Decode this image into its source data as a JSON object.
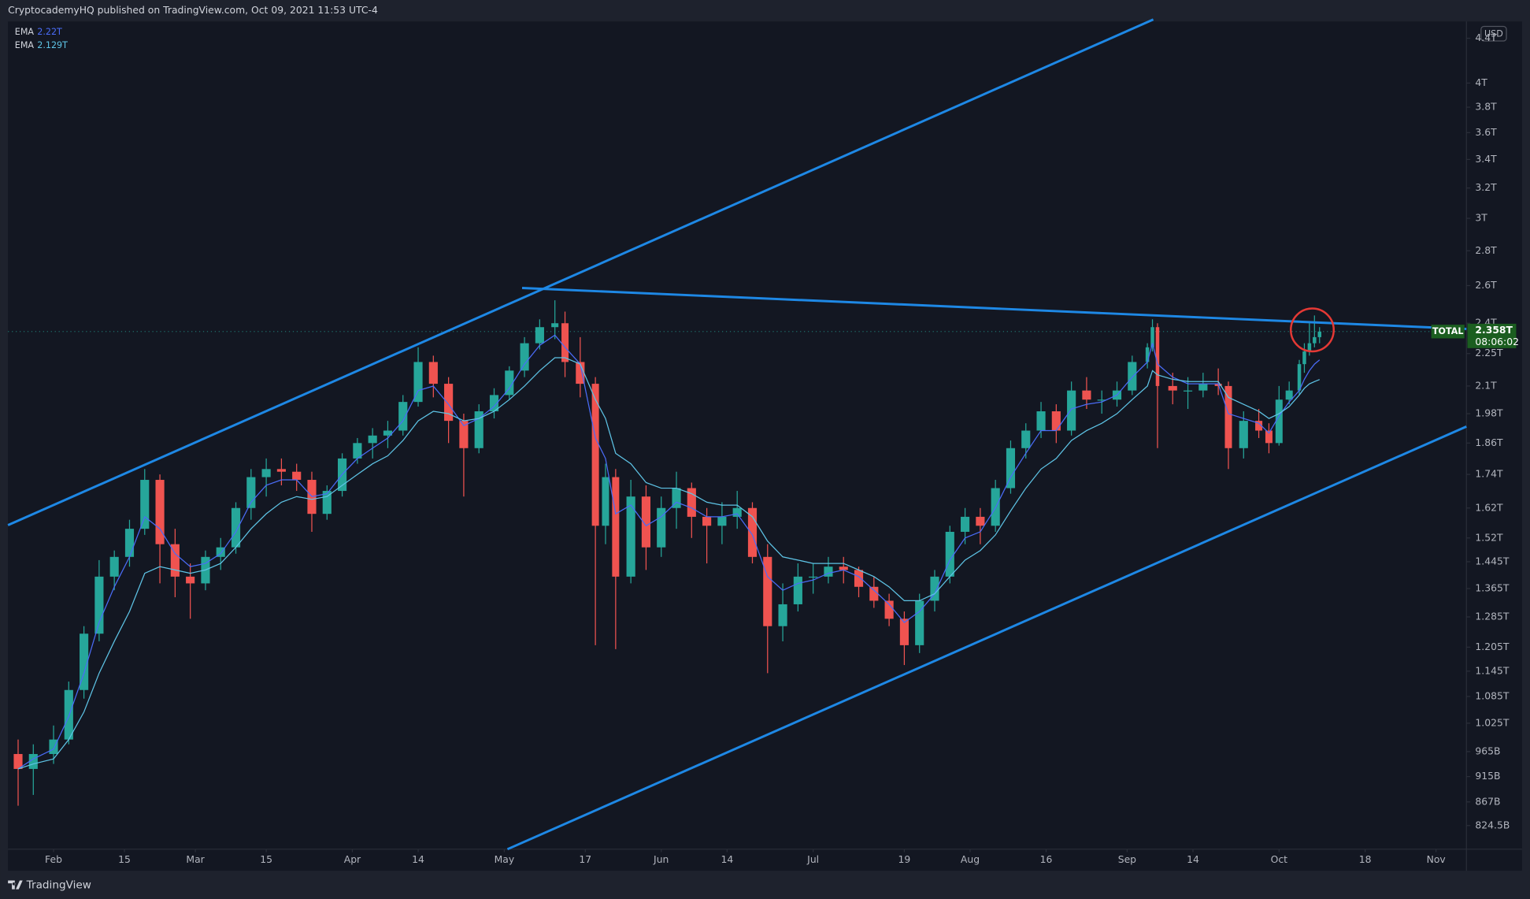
{
  "header": "CryptocademyHQ published on TradingView.com, Oct 09, 2021 11:53 UTC-4",
  "footer": "TradingView",
  "chart_data": {
    "type": "candlestick",
    "symbol": "TOTAL",
    "currency": "USD",
    "countdown": "08:06:02",
    "last_price": {
      "value": 2.358,
      "label": "2.358T"
    },
    "up_color": "#26a69a",
    "down_color": "#ef5350",
    "x": [
      "01-25",
      "01-28",
      "02-01",
      "02-04",
      "02-07",
      "02-10",
      "02-13",
      "02-16",
      "02-19",
      "02-22",
      "02-25",
      "02-28",
      "03-03",
      "03-06",
      "03-09",
      "03-12",
      "03-15",
      "03-18",
      "03-21",
      "03-24",
      "03-27",
      "03-30",
      "04-02",
      "04-05",
      "04-08",
      "04-11",
      "04-14",
      "04-17",
      "04-20",
      "04-23",
      "04-26",
      "04-29",
      "05-02",
      "05-05",
      "05-08",
      "05-11",
      "05-13",
      "05-16",
      "05-19",
      "05-21",
      "05-23",
      "05-26",
      "05-29",
      "06-01",
      "06-04",
      "06-07",
      "06-10",
      "06-13",
      "06-16",
      "06-19",
      "06-22",
      "06-25",
      "06-28",
      "07-01",
      "07-04",
      "07-07",
      "07-10",
      "07-13",
      "07-16",
      "07-19",
      "07-22",
      "07-25",
      "07-28",
      "07-31",
      "08-03",
      "08-06",
      "08-09",
      "08-12",
      "08-15",
      "08-18",
      "08-21",
      "08-24",
      "08-27",
      "08-30",
      "09-02",
      "09-05",
      "09-06",
      "09-07",
      "09-10",
      "09-13",
      "09-16",
      "09-19",
      "09-21",
      "09-24",
      "09-27",
      "09-29",
      "10-01",
      "10-03",
      "10-05",
      "10-06",
      "10-07",
      "10-08",
      "10-09"
    ],
    "open": [
      0.96,
      0.93,
      0.96,
      0.99,
      1.1,
      1.24,
      1.4,
      1.46,
      1.55,
      1.72,
      1.5,
      1.4,
      1.38,
      1.46,
      1.49,
      1.62,
      1.73,
      1.76,
      1.75,
      1.72,
      1.6,
      1.68,
      1.8,
      1.86,
      1.89,
      1.91,
      2.03,
      2.21,
      2.11,
      1.95,
      1.84,
      1.99,
      2.06,
      2.17,
      2.3,
      2.38,
      2.4,
      2.21,
      2.11,
      1.56,
      1.73,
      1.4,
      1.66,
      1.49,
      1.62,
      1.69,
      1.59,
      1.56,
      1.59,
      1.62,
      1.46,
      1.26,
      1.32,
      1.4,
      1.4,
      1.43,
      1.42,
      1.37,
      1.33,
      1.28,
      1.21,
      1.33,
      1.4,
      1.54,
      1.59,
      1.56,
      1.69,
      1.84,
      1.91,
      1.99,
      1.91,
      2.08,
      2.04,
      2.04,
      2.08,
      2.21,
      2.28,
      2.38,
      2.1,
      2.08,
      2.08,
      2.11,
      2.1,
      1.84,
      1.95,
      1.91,
      1.86,
      2.04,
      2.08,
      2.2,
      2.26,
      2.3,
      2.33
    ],
    "high": [
      0.99,
      0.98,
      1.02,
      1.12,
      1.26,
      1.45,
      1.48,
      1.58,
      1.76,
      1.74,
      1.55,
      1.44,
      1.48,
      1.52,
      1.64,
      1.76,
      1.8,
      1.8,
      1.78,
      1.75,
      1.7,
      1.82,
      1.88,
      1.92,
      1.95,
      2.06,
      2.28,
      2.24,
      2.14,
      1.98,
      2.02,
      2.09,
      2.19,
      2.33,
      2.42,
      2.52,
      2.46,
      2.33,
      2.14,
      1.78,
      1.76,
      1.72,
      1.7,
      1.66,
      1.75,
      1.71,
      1.62,
      1.64,
      1.68,
      1.64,
      1.5,
      1.38,
      1.44,
      1.44,
      1.46,
      1.46,
      1.43,
      1.4,
      1.35,
      1.3,
      1.35,
      1.42,
      1.56,
      1.62,
      1.62,
      1.72,
      1.87,
      1.94,
      2.03,
      2.02,
      2.12,
      2.14,
      2.08,
      2.12,
      2.24,
      2.3,
      2.42,
      2.4,
      2.16,
      2.14,
      2.16,
      2.18,
      2.12,
      1.99,
      2.0,
      1.94,
      2.1,
      2.12,
      2.22,
      2.3,
      2.4,
      2.44,
      2.38
    ],
    "low": [
      0.86,
      0.88,
      0.94,
      0.98,
      1.08,
      1.22,
      1.36,
      1.43,
      1.53,
      1.38,
      1.34,
      1.28,
      1.36,
      1.42,
      1.47,
      1.58,
      1.66,
      1.7,
      1.68,
      1.54,
      1.58,
      1.66,
      1.78,
      1.8,
      1.84,
      1.89,
      2.01,
      2.05,
      1.86,
      1.66,
      1.82,
      1.96,
      2.04,
      2.14,
      2.27,
      2.32,
      2.14,
      2.05,
      1.21,
      1.5,
      1.2,
      1.38,
      1.42,
      1.46,
      1.55,
      1.52,
      1.44,
      1.5,
      1.55,
      1.44,
      1.14,
      1.22,
      1.3,
      1.35,
      1.38,
      1.38,
      1.34,
      1.31,
      1.26,
      1.16,
      1.19,
      1.3,
      1.38,
      1.5,
      1.5,
      1.54,
      1.67,
      1.8,
      1.88,
      1.86,
      1.89,
      2.0,
      1.98,
      2.01,
      2.06,
      2.18,
      2.26,
      1.84,
      2.02,
      2.0,
      2.05,
      2.06,
      1.76,
      1.8,
      1.88,
      1.82,
      1.85,
      2.02,
      2.06,
      2.16,
      2.24,
      2.28,
      2.3
    ],
    "close": [
      0.93,
      0.96,
      0.99,
      1.1,
      1.24,
      1.4,
      1.46,
      1.55,
      1.72,
      1.5,
      1.4,
      1.38,
      1.46,
      1.49,
      1.62,
      1.73,
      1.76,
      1.75,
      1.72,
      1.6,
      1.68,
      1.8,
      1.86,
      1.89,
      1.91,
      2.03,
      2.21,
      2.11,
      1.95,
      1.84,
      1.99,
      2.06,
      2.17,
      2.3,
      2.38,
      2.4,
      2.21,
      2.11,
      1.56,
      1.73,
      1.4,
      1.66,
      1.49,
      1.62,
      1.69,
      1.59,
      1.56,
      1.59,
      1.62,
      1.46,
      1.26,
      1.32,
      1.4,
      1.4,
      1.43,
      1.42,
      1.37,
      1.33,
      1.28,
      1.21,
      1.33,
      1.4,
      1.54,
      1.59,
      1.56,
      1.69,
      1.84,
      1.91,
      1.99,
      1.91,
      2.08,
      2.04,
      2.04,
      2.08,
      2.21,
      2.28,
      2.38,
      2.1,
      2.08,
      2.08,
      2.11,
      2.1,
      1.84,
      1.95,
      1.91,
      1.86,
      2.04,
      2.08,
      2.2,
      2.26,
      2.3,
      2.33,
      2.358
    ],
    "series": [
      {
        "name": "EMA",
        "color": "#4a6cf7",
        "last_label": {
          "value": 2.22,
          "label": "2.22T"
        },
        "values": [
          0.93,
          0.95,
          0.97,
          1.04,
          1.14,
          1.27,
          1.37,
          1.46,
          1.59,
          1.55,
          1.47,
          1.43,
          1.44,
          1.47,
          1.54,
          1.64,
          1.7,
          1.72,
          1.72,
          1.66,
          1.67,
          1.74,
          1.8,
          1.84,
          1.88,
          1.95,
          2.08,
          2.1,
          2.02,
          1.93,
          1.96,
          2.01,
          2.09,
          2.2,
          2.29,
          2.34,
          2.28,
          2.2,
          1.88,
          1.8,
          1.6,
          1.63,
          1.56,
          1.59,
          1.64,
          1.62,
          1.59,
          1.59,
          1.6,
          1.53,
          1.4,
          1.36,
          1.38,
          1.39,
          1.41,
          1.42,
          1.4,
          1.36,
          1.32,
          1.27,
          1.3,
          1.35,
          1.45,
          1.52,
          1.54,
          1.62,
          1.73,
          1.82,
          1.91,
          1.91,
          2.0,
          2.02,
          2.03,
          2.06,
          2.14,
          2.21,
          2.3,
          2.2,
          2.14,
          2.11,
          2.11,
          2.11,
          1.98,
          1.96,
          1.94,
          1.9,
          1.97,
          2.03,
          2.08,
          2.13,
          2.17,
          2.2,
          2.22
        ]
      },
      {
        "name": "EMA",
        "color": "#5ec4e6",
        "last_label": {
          "value": 2.129,
          "label": "2.129T"
        },
        "values": [
          0.93,
          0.94,
          0.95,
          0.99,
          1.05,
          1.14,
          1.22,
          1.3,
          1.41,
          1.43,
          1.42,
          1.41,
          1.42,
          1.44,
          1.49,
          1.55,
          1.6,
          1.64,
          1.66,
          1.65,
          1.66,
          1.7,
          1.74,
          1.78,
          1.81,
          1.87,
          1.95,
          1.99,
          1.98,
          1.95,
          1.96,
          1.99,
          2.04,
          2.1,
          2.17,
          2.23,
          2.23,
          2.2,
          2.04,
          1.96,
          1.82,
          1.78,
          1.71,
          1.69,
          1.69,
          1.67,
          1.64,
          1.63,
          1.63,
          1.59,
          1.51,
          1.46,
          1.45,
          1.44,
          1.44,
          1.44,
          1.42,
          1.4,
          1.37,
          1.33,
          1.33,
          1.35,
          1.4,
          1.45,
          1.48,
          1.53,
          1.61,
          1.69,
          1.76,
          1.8,
          1.87,
          1.91,
          1.94,
          1.98,
          2.04,
          2.1,
          2.17,
          2.15,
          2.13,
          2.12,
          2.12,
          2.12,
          2.05,
          2.02,
          1.99,
          1.96,
          1.98,
          2.01,
          2.06,
          2.09,
          2.11,
          2.12,
          2.129
        ]
      }
    ],
    "log_scale": true,
    "grid": false,
    "ylim": [
      0.784,
      4.56
    ],
    "yticks": [
      {
        "value": 4.4,
        "label": "4.4T"
      },
      {
        "value": 4,
        "label": "4T"
      },
      {
        "value": 3.8,
        "label": "3.8T"
      },
      {
        "value": 3.6,
        "label": "3.6T"
      },
      {
        "value": 3.4,
        "label": "3.4T"
      },
      {
        "value": 3.2,
        "label": "3.2T"
      },
      {
        "value": 3,
        "label": "3T"
      },
      {
        "value": 2.8,
        "label": "2.8T"
      },
      {
        "value": 2.6,
        "label": "2.6T"
      },
      {
        "value": 2.4,
        "label": "2.4T"
      },
      {
        "value": 2.25,
        "label": "2.25T"
      },
      {
        "value": 2.1,
        "label": "2.1T"
      },
      {
        "value": 1.98,
        "label": "1.98T"
      },
      {
        "value": 1.86,
        "label": "1.86T"
      },
      {
        "value": 1.74,
        "label": "1.74T"
      },
      {
        "value": 1.62,
        "label": "1.62T"
      },
      {
        "value": 1.52,
        "label": "1.52T"
      },
      {
        "value": 1.445,
        "label": "1.445T"
      },
      {
        "value": 1.365,
        "label": "1.365T"
      },
      {
        "value": 1.285,
        "label": "1.285T"
      },
      {
        "value": 1.205,
        "label": "1.205T"
      },
      {
        "value": 1.145,
        "label": "1.145T"
      },
      {
        "value": 1.085,
        "label": "1.085T"
      },
      {
        "value": 1.025,
        "label": "1.025T"
      },
      {
        "value": 0.965,
        "label": "965B"
      },
      {
        "value": 0.915,
        "label": "915B"
      },
      {
        "value": 0.867,
        "label": "867B"
      },
      {
        "value": 0.8245,
        "label": "824.5B"
      }
    ],
    "xlim": [
      "01-23",
      "11-07"
    ],
    "xticks": [
      {
        "value": "02-01",
        "label": "Feb"
      },
      {
        "value": "02-15",
        "label": "15"
      },
      {
        "value": "03-01",
        "label": "Mar"
      },
      {
        "value": "03-15",
        "label": "15"
      },
      {
        "value": "04-01",
        "label": "Apr"
      },
      {
        "value": "04-14",
        "label": "14"
      },
      {
        "value": "05-01",
        "label": "May"
      },
      {
        "value": "05-17",
        "label": "17"
      },
      {
        "value": "06-01",
        "label": "Jun"
      },
      {
        "value": "06-14",
        "label": "14"
      },
      {
        "value": "07-01",
        "label": "Jul"
      },
      {
        "value": "07-19",
        "label": "19"
      },
      {
        "value": "08-01",
        "label": "Aug"
      },
      {
        "value": "08-16",
        "label": "16"
      },
      {
        "value": "09-01",
        "label": "Sep"
      },
      {
        "value": "09-14",
        "label": "14"
      },
      {
        "value": "10-01",
        "label": "Oct"
      },
      {
        "value": "10-18",
        "label": "18"
      },
      {
        "value": "11-01",
        "label": "Nov"
      }
    ]
  }
}
